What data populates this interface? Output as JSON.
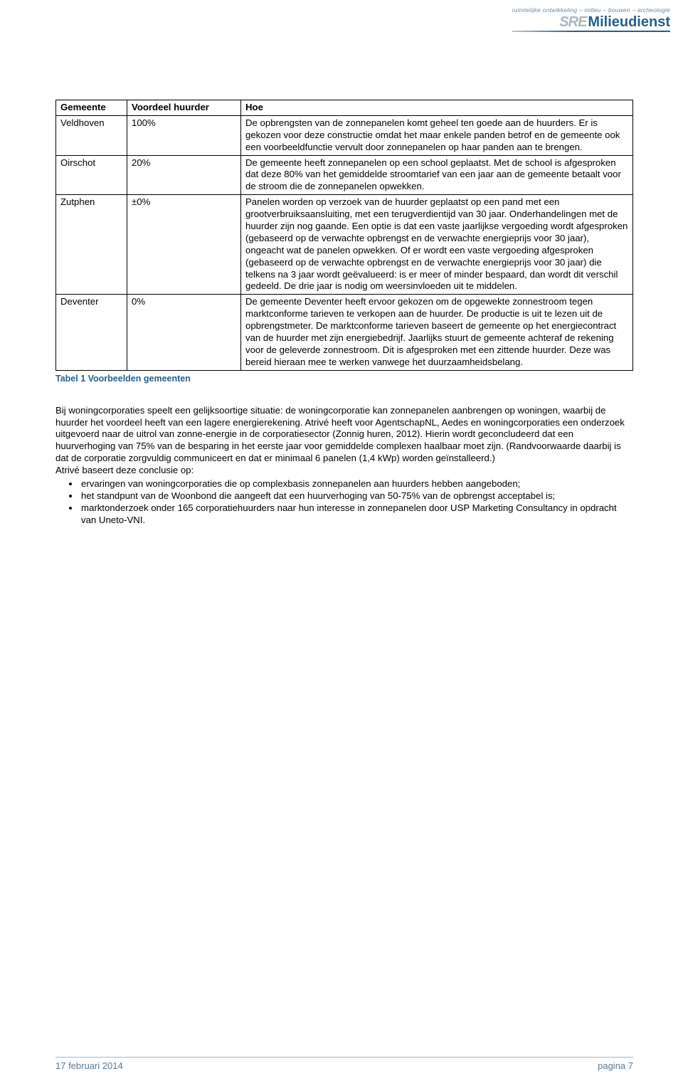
{
  "logo": {
    "tagline": "ruimtelijke ontwikkeling – milieu – bouwen – archeologie",
    "brand_prefix": "SRE",
    "brand_name": "Milieudienst"
  },
  "table": {
    "headers": [
      "Gemeente",
      "Voordeel huurder",
      "Hoe"
    ],
    "rows": [
      {
        "gemeente": "Veldhoven",
        "voordeel": "100%",
        "hoe": "De opbrengsten van de zonnepanelen komt geheel ten goede aan de huurders. Er is gekozen voor deze constructie omdat het maar enkele panden betrof en de gemeente ook een voorbeeldfunctie vervult door zonnepanelen op haar panden aan te brengen."
      },
      {
        "gemeente": "Oirschot",
        "voordeel": "20%",
        "hoe": "De gemeente heeft zonnepanelen op een school geplaatst. Met de school is afgesproken dat deze 80% van het gemiddelde stroomtarief van een jaar aan de gemeente betaalt voor de stroom die de zonnepanelen opwekken."
      },
      {
        "gemeente": "Zutphen",
        "voordeel": "±0%",
        "hoe": "Panelen worden op verzoek van de huurder geplaatst op een pand met een grootverbruiksaansluiting, met een terugverdientijd van 30 jaar. Onderhandelingen met de huurder zijn nog gaande. Een optie is dat een vaste jaarlijkse vergoeding wordt afgesproken (gebaseerd op de verwachte opbrengst en de verwachte energieprijs voor 30 jaar), ongeacht wat de panelen opwekken. Of er wordt een vaste vergoeding afgesproken (gebaseerd op de verwachte opbrengst en de verwachte energieprijs voor 30 jaar) die telkens na 3 jaar wordt geëvalueerd: is er meer of minder bespaard, dan wordt dit verschil gedeeld. De drie jaar is nodig om weersinvloeden uit te middelen."
      },
      {
        "gemeente": "Deventer",
        "voordeel": "0%",
        "hoe": "De gemeente Deventer heeft ervoor gekozen om de opgewekte zonnestroom tegen marktconforme tarieven te verkopen aan de huurder. De productie is uit te lezen uit de opbrengstmeter. De marktconforme tarieven baseert de gemeente op het energiecontract van de huurder met zijn energiebedrijf. Jaarlijks stuurt de gemeente achteraf de rekening voor de geleverde zonnestroom. Dit is afgesproken met een zittende huurder. Deze was bereid hieraan mee te werken vanwege het duurzaamheidsbelang."
      }
    ],
    "caption": "Tabel 1 Voorbeelden gemeenten"
  },
  "body": {
    "paragraph": "Bij woningcorporaties speelt een gelijksoortige situatie: de woningcorporatie kan zonnepanelen aanbrengen op woningen, waarbij de huurder het voordeel heeft van een lagere energierekening. Atrivé heeft voor AgentschapNL, Aedes en woningcorporaties een onderzoek uitgevoerd naar de uitrol van zonne-energie in de corporatiesector (Zonnig huren, 2012). Hierin wordt geconcludeerd dat een huurverhoging van 75% van de besparing in het eerste jaar voor gemiddelde complexen haalbaar moet zijn. (Randvoorwaarde daarbij is dat de corporatie zorgvuldig communiceert en dat er minimaal 6 panelen (1,4 kWp) worden geïnstalleerd.)",
    "lead_in": "Atrivé baseert deze conclusie op:",
    "bullets": [
      "ervaringen van woningcorporaties die op complexbasis zonnepanelen aan huurders hebben aangeboden;",
      "het standpunt van de Woonbond die aangeeft dat een huurverhoging van 50-75% van de opbrengst acceptabel is;",
      "marktonderzoek onder 165 corporatiehuurders naar hun interesse in zonnepanelen door USP Marketing Consultancy in opdracht van Uneto-VNI."
    ]
  },
  "footer": {
    "date": "17 februari 2014",
    "page": "pagina 7"
  },
  "colors": {
    "accent": "#255f8b",
    "footer_text": "#5a7a93",
    "footer_rule": "#9fb7c9"
  }
}
